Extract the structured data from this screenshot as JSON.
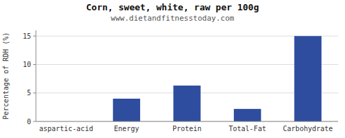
{
  "chart_data": {
    "type": "bar",
    "title": "Corn, sweet, white, raw per 100g",
    "subtitle": "www.dietandfitnesstoday.com",
    "categories": [
      "aspartic-acid",
      "Energy",
      "Protein",
      "Total-Fat",
      "Carbohydrate"
    ],
    "values": [
      0,
      4.0,
      6.3,
      2.2,
      15.0
    ],
    "color": "#2e4d9e",
    "ylabel": "Percentage of RDH (%)",
    "ylim": [
      0,
      16
    ],
    "yticks": [
      0,
      5,
      10,
      15
    ],
    "grid": true
  }
}
